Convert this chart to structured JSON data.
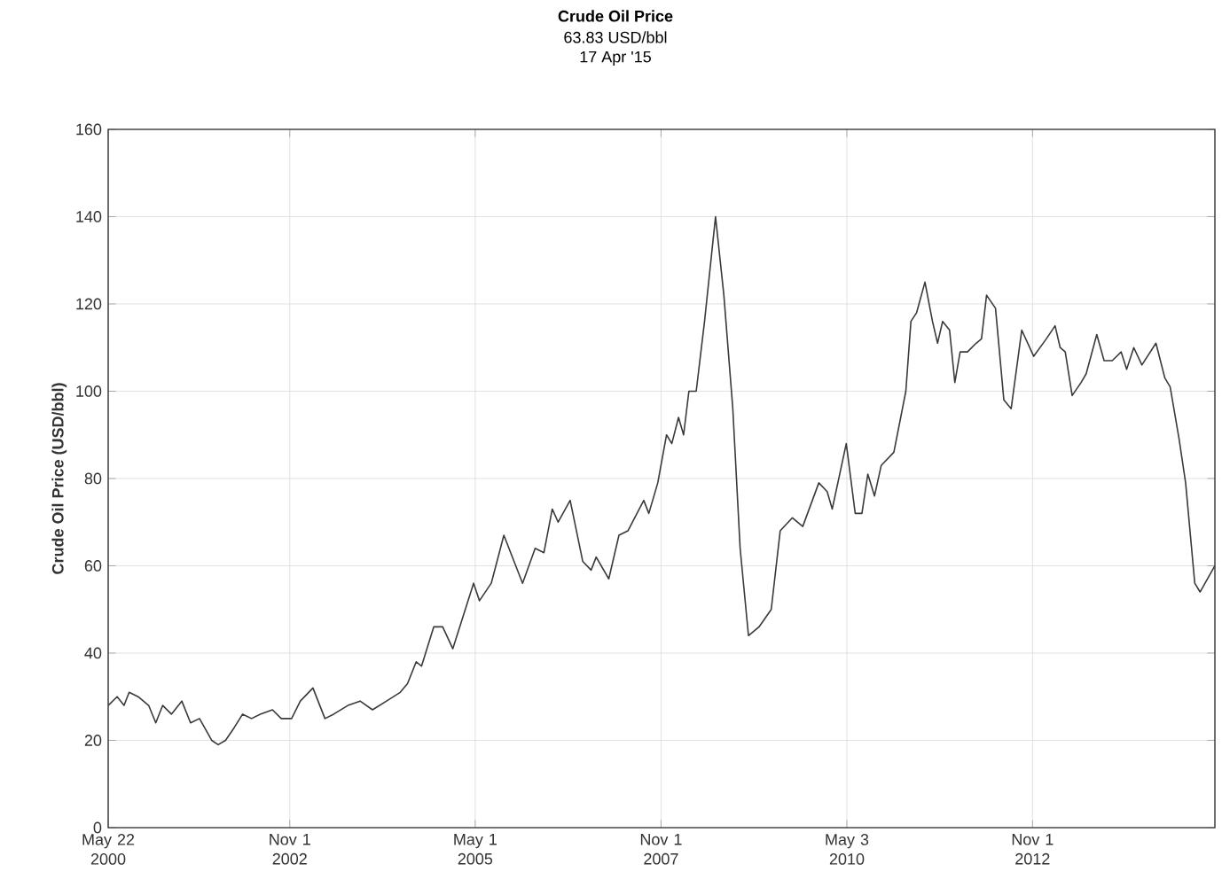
{
  "chart_data": {
    "type": "line",
    "title": "Crude Oil Price",
    "subtitle": "63.83 USD/bbl",
    "annotations": [
      "17 Apr '15"
    ],
    "ylabel": "Crude Oil Price (USD/bbl)",
    "x": [
      "2000-05-22",
      "2000-07-05",
      "2000-08-08",
      "2000-09-02",
      "2000-10-16",
      "2000-12-07",
      "2001-01-11",
      "2001-02-14",
      "2001-03-29",
      "2001-05-19",
      "2001-07-01",
      "2001-08-14",
      "2001-10-13",
      "2001-11-14",
      "2001-12-20",
      "2002-02-02",
      "2002-03-14",
      "2002-04-27",
      "2002-06-09",
      "2002-08-08",
      "2002-09-20",
      "2002-11-10",
      "2002-12-23",
      "2003-02-23",
      "2003-04-23",
      "2003-06-05",
      "2003-08-14",
      "2003-10-13",
      "2003-12-13",
      "2004-02-20",
      "2004-04-27",
      "2004-06-02",
      "2004-07-15",
      "2004-08-10",
      "2004-10-09",
      "2004-11-22",
      "2005-01-11",
      "2005-04-23",
      "2005-05-22",
      "2005-07-19",
      "2005-09-19",
      "2005-12-20",
      "2006-02-20",
      "2006-04-04",
      "2006-05-15",
      "2006-06-13",
      "2006-08-11",
      "2006-10-12",
      "2006-11-22",
      "2006-12-17",
      "2007-02-17",
      "2007-04-08",
      "2007-05-22",
      "2007-08-08",
      "2007-09-02",
      "2007-10-16",
      "2007-11-28",
      "2007-12-24",
      "2008-01-26",
      "2008-02-20",
      "2008-03-17",
      "2008-04-22",
      "2008-06-02",
      "2008-07-26",
      "2008-09-05",
      "2008-10-19",
      "2008-11-24",
      "2009-01-04",
      "2009-02-25",
      "2009-04-26",
      "2009-06-09",
      "2009-08-08",
      "2009-09-28",
      "2009-12-16",
      "2010-01-26",
      "2010-02-20",
      "2010-04-30",
      "2010-06-13",
      "2010-07-16",
      "2010-08-14",
      "2010-09-16",
      "2010-10-19",
      "2010-12-20",
      "2011-02-17",
      "2011-03-14",
      "2011-04-11",
      "2011-05-22",
      "2011-06-28",
      "2011-07-23",
      "2011-08-17",
      "2011-09-20",
      "2011-10-16",
      "2011-11-11",
      "2011-12-17",
      "2012-01-29",
      "2012-02-24",
      "2012-03-20",
      "2012-05-03",
      "2012-06-13",
      "2012-07-19",
      "2012-09-09",
      "2012-11-07",
      "2013-01-08",
      "2013-02-20",
      "2013-03-17",
      "2013-04-11",
      "2013-05-15",
      "2013-06-28",
      "2013-07-23",
      "2013-09-13",
      "2013-10-19",
      "2013-11-28",
      "2014-01-11",
      "2014-02-07",
      "2014-03-14",
      "2014-04-23",
      "2014-07-01",
      "2014-08-14",
      "2014-09-09",
      "2014-10-23",
      "2014-11-24",
      "2015-01-08",
      "2015-02-03",
      "2015-04-17"
    ],
    "series": [
      {
        "color": "#3a3a3a",
        "values": [
          28,
          30,
          28,
          31,
          30,
          28,
          24,
          28,
          26,
          29,
          24,
          25,
          20,
          19,
          20,
          23,
          26,
          25,
          26,
          27,
          25,
          25,
          29,
          32,
          25,
          26,
          28,
          29,
          27,
          29,
          31,
          33,
          38,
          37,
          46,
          46,
          41,
          56,
          52,
          56,
          67,
          56,
          64,
          63,
          73,
          70,
          75,
          61,
          59,
          62,
          57,
          67,
          68,
          75,
          72,
          79,
          90,
          88,
          94,
          90,
          100,
          100,
          116,
          140,
          122,
          96,
          64,
          44,
          46,
          50,
          68,
          71,
          69,
          79,
          77,
          73,
          88,
          72,
          72,
          81,
          76,
          83,
          86,
          100,
          116,
          118,
          125,
          116,
          111,
          116,
          114,
          102,
          109,
          109,
          111,
          112,
          122,
          119,
          98,
          96,
          114,
          108,
          112,
          115,
          110,
          109,
          99,
          102,
          104,
          113,
          107,
          107,
          109,
          105,
          110,
          106,
          111,
          103,
          101,
          89,
          79,
          56,
          54,
          60
        ]
      }
    ],
    "xlim": [
      "2000-05-22",
      "2015-04-17"
    ],
    "xticks": [
      {
        "value": "2000-05-22",
        "label": "May 22 2000"
      },
      {
        "value": "2002-11-01",
        "label": "Nov 1 2002"
      },
      {
        "value": "2005-05-01",
        "label": "May 1 2005"
      },
      {
        "value": "2007-11-01",
        "label": "Nov 1 2007"
      },
      {
        "value": "2010-05-03",
        "label": "May 3 2010"
      },
      {
        "value": "2012-11-01",
        "label": "Nov 1 2012"
      }
    ],
    "ylim": [
      0,
      160
    ],
    "yticks": [
      0,
      20,
      40,
      60,
      80,
      100,
      120,
      140,
      160
    ],
    "grid": true,
    "marker": "none",
    "line_style": "solid"
  }
}
